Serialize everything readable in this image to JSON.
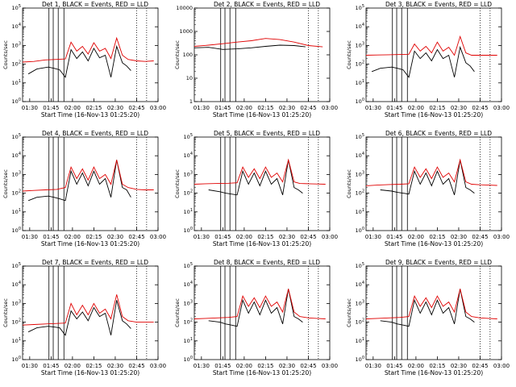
{
  "figure": {
    "xlabel": "Start Time (16-Nov-13 01:25:20)",
    "ylabel": "Counts/sec",
    "x_tick_labels": [
      "01:30",
      "01:45",
      "02:00",
      "02:15",
      "02:30",
      "02:45",
      "03:00"
    ],
    "colors": {
      "events": "#000000",
      "lld": "#e00000"
    }
  },
  "chart_data": [
    {
      "type": "line",
      "title": "Det 1, BLACK = Events, RED = LLD",
      "xlabel": "Start Time (16-Nov-13 01:25:20)",
      "ylabel": "Counts/sec",
      "yscale": "log",
      "xlim_min": [
        0,
        95
      ],
      "ylim": [
        1,
        100000
      ],
      "y_tick_labels": [
        "10^0",
        "10^1",
        "10^2",
        "10^3",
        "10^4",
        "10^5"
      ],
      "vlines_min": [
        18.5,
        21.5,
        25,
        29
      ],
      "dotted_vlines_min": [
        80,
        87
      ],
      "series": [
        {
          "name": "Events",
          "x_min": [
            4,
            10,
            18,
            22,
            26,
            30,
            34,
            38,
            42,
            46,
            50,
            54,
            58,
            62,
            66,
            70,
            73,
            76
          ],
          "values": [
            30,
            55,
            70,
            60,
            50,
            20,
            600,
            200,
            450,
            150,
            700,
            220,
            300,
            20,
            900,
            120,
            80,
            45
          ]
        },
        {
          "name": "LLD",
          "x_min": [
            0,
            8,
            16,
            24,
            30,
            34,
            38,
            42,
            46,
            50,
            54,
            58,
            62,
            66,
            70,
            74,
            80,
            86,
            92
          ],
          "values": [
            130,
            140,
            170,
            180,
            190,
            1500,
            500,
            900,
            350,
            1400,
            500,
            700,
            200,
            2500,
            300,
            180,
            150,
            140,
            150
          ]
        }
      ]
    },
    {
      "type": "line",
      "title": "Det 2, BLACK = Events, RED = LLD",
      "xlabel": "Start Time (16-Nov-13 01:25:20)",
      "ylabel": "Counts/sec",
      "yscale": "log",
      "xlim_min": [
        0,
        95
      ],
      "ylim": [
        1,
        10000
      ],
      "y_tick_labels": [
        "1",
        "10",
        "100",
        "1000",
        "10000"
      ],
      "vlines_min": [
        18.5,
        21.5,
        25,
        29
      ],
      "dotted_vlines_min": [
        80,
        87
      ],
      "series": [
        {
          "name": "Events",
          "x_min": [
            0,
            10,
            20,
            30,
            40,
            50,
            60,
            70,
            78
          ],
          "values": [
            200,
            210,
            170,
            180,
            200,
            230,
            260,
            250,
            220
          ]
        },
        {
          "name": "LLD",
          "x_min": [
            0,
            10,
            20,
            30,
            40,
            50,
            60,
            70,
            80,
            90
          ],
          "values": [
            230,
            260,
            300,
            350,
            400,
            500,
            450,
            350,
            250,
            220
          ]
        }
      ]
    },
    {
      "type": "line",
      "title": "Det 3, BLACK = Events, RED = LLD",
      "xlabel": "Start Time (16-Nov-13 01:25:20)",
      "ylabel": "Counts/sec",
      "yscale": "log",
      "xlim_min": [
        0,
        95
      ],
      "ylim": [
        1,
        100000
      ],
      "y_tick_labels": [
        "10^0",
        "10^1",
        "10^2",
        "10^3",
        "10^4",
        "10^5"
      ],
      "vlines_min": [
        18.5,
        21.5,
        25,
        29
      ],
      "dotted_vlines_min": [
        80,
        87
      ],
      "series": [
        {
          "name": "Events",
          "x_min": [
            4,
            10,
            18,
            22,
            26,
            30,
            34,
            38,
            42,
            46,
            50,
            54,
            58,
            62,
            66,
            70,
            73,
            76
          ],
          "values": [
            40,
            60,
            70,
            60,
            50,
            20,
            500,
            200,
            400,
            150,
            600,
            200,
            300,
            20,
            800,
            120,
            80,
            40
          ]
        },
        {
          "name": "LLD",
          "x_min": [
            0,
            8,
            16,
            24,
            30,
            34,
            38,
            42,
            46,
            50,
            54,
            58,
            62,
            66,
            70,
            74,
            80,
            86,
            92
          ],
          "values": [
            300,
            310,
            320,
            330,
            340,
            1200,
            500,
            900,
            400,
            1500,
            500,
            800,
            300,
            3000,
            400,
            300,
            300,
            300,
            300
          ]
        }
      ]
    },
    {
      "type": "line",
      "title": "Det 4, BLACK = Events, RED = LLD",
      "xlabel": "Start Time (16-Nov-13 01:25:20)",
      "ylabel": "Counts/sec",
      "yscale": "log",
      "xlim_min": [
        0,
        95
      ],
      "ylim": [
        1,
        100000
      ],
      "y_tick_labels": [
        "10^0",
        "10^1",
        "10^2",
        "10^3",
        "10^4",
        "10^5"
      ],
      "vlines_min": [
        18.5,
        21.5,
        25,
        29
      ],
      "dotted_vlines_min": [
        80,
        87
      ],
      "series": [
        {
          "name": "Events",
          "x_min": [
            4,
            10,
            18,
            22,
            26,
            30,
            34,
            38,
            42,
            46,
            50,
            54,
            58,
            62,
            66,
            70,
            73,
            76
          ],
          "values": [
            40,
            60,
            70,
            60,
            50,
            40,
            1500,
            300,
            1200,
            250,
            1500,
            300,
            600,
            60,
            6000,
            200,
            150,
            60
          ]
        },
        {
          "name": "LLD",
          "x_min": [
            0,
            8,
            16,
            24,
            30,
            34,
            38,
            42,
            46,
            50,
            54,
            58,
            62,
            66,
            70,
            74,
            80,
            86,
            92
          ],
          "values": [
            130,
            140,
            150,
            160,
            200,
            2500,
            600,
            2000,
            500,
            2500,
            600,
            1000,
            300,
            6000,
            300,
            200,
            160,
            150,
            150
          ]
        }
      ]
    },
    {
      "type": "line",
      "title": "Det 5, BLACK = Events, RED = LLD",
      "xlabel": "Start Time (16-Nov-13 01:25:20)",
      "ylabel": "Counts/sec",
      "yscale": "log",
      "xlim_min": [
        0,
        95
      ],
      "ylim": [
        1,
        100000
      ],
      "y_tick_labels": [
        "10^0",
        "10^1",
        "10^2",
        "10^3",
        "10^4",
        "10^5"
      ],
      "vlines_min": [
        18.5,
        21.5,
        25,
        29
      ],
      "dotted_vlines_min": [
        80,
        87
      ],
      "series": [
        {
          "name": "Events",
          "x_min": [
            10,
            18,
            22,
            26,
            30,
            34,
            38,
            42,
            46,
            50,
            54,
            58,
            62,
            66,
            70,
            73,
            76
          ],
          "values": [
            150,
            120,
            100,
            90,
            80,
            1500,
            300,
            1200,
            250,
            1500,
            300,
            600,
            80,
            6000,
            200,
            150,
            100
          ]
        },
        {
          "name": "LLD",
          "x_min": [
            0,
            8,
            16,
            24,
            30,
            34,
            38,
            42,
            46,
            50,
            54,
            58,
            62,
            66,
            70,
            74,
            80,
            86,
            92
          ],
          "values": [
            300,
            320,
            330,
            340,
            360,
            2500,
            700,
            2000,
            600,
            2500,
            700,
            1200,
            400,
            6000,
            400,
            330,
            320,
            310,
            300
          ]
        }
      ]
    },
    {
      "type": "line",
      "title": "Det 6, BLACK = Events, RED = LLD",
      "xlabel": "Start Time (16-Nov-13 01:25:20)",
      "ylabel": "Counts/sec",
      "yscale": "log",
      "xlim_min": [
        0,
        95
      ],
      "ylim": [
        1,
        100000
      ],
      "y_tick_labels": [
        "10^0",
        "10^1",
        "10^2",
        "10^3",
        "10^4",
        "10^5"
      ],
      "vlines_min": [
        18.5,
        21.5,
        25,
        29
      ],
      "dotted_vlines_min": [
        80,
        87
      ],
      "series": [
        {
          "name": "Events",
          "x_min": [
            10,
            18,
            22,
            26,
            30,
            34,
            38,
            42,
            46,
            50,
            54,
            58,
            62,
            66,
            70,
            73,
            76
          ],
          "values": [
            150,
            130,
            110,
            100,
            90,
            1500,
            300,
            1200,
            250,
            1500,
            300,
            600,
            80,
            6000,
            200,
            150,
            100
          ]
        },
        {
          "name": "LLD",
          "x_min": [
            0,
            8,
            16,
            24,
            30,
            34,
            38,
            42,
            46,
            50,
            54,
            58,
            62,
            66,
            70,
            74,
            80,
            86,
            92
          ],
          "values": [
            250,
            270,
            290,
            300,
            320,
            2500,
            700,
            2000,
            600,
            2500,
            700,
            1200,
            400,
            6000,
            400,
            300,
            280,
            270,
            260
          ]
        }
      ]
    },
    {
      "type": "line",
      "title": "Det 7, BLACK = Events, RED = LLD",
      "xlabel": "Start Time (16-Nov-13 01:25:20)",
      "ylabel": "Counts/sec",
      "yscale": "log",
      "xlim_min": [
        0,
        95
      ],
      "ylim": [
        1,
        100000
      ],
      "y_tick_labels": [
        "10^0",
        "10^1",
        "10^2",
        "10^3",
        "10^4",
        "10^5"
      ],
      "vlines_min": [
        18.5,
        21.5,
        25,
        29
      ],
      "dotted_vlines_min": [
        80,
        87
      ],
      "series": [
        {
          "name": "Events",
          "x_min": [
            4,
            10,
            18,
            22,
            26,
            30,
            34,
            38,
            42,
            46,
            50,
            54,
            58,
            62,
            66,
            70,
            73,
            76
          ],
          "values": [
            30,
            50,
            60,
            55,
            50,
            20,
            400,
            150,
            350,
            120,
            600,
            200,
            300,
            20,
            1500,
            120,
            80,
            45
          ]
        },
        {
          "name": "LLD",
          "x_min": [
            0,
            8,
            16,
            24,
            30,
            34,
            38,
            42,
            46,
            50,
            54,
            58,
            62,
            66,
            70,
            74,
            80,
            86,
            92
          ],
          "values": [
            70,
            75,
            80,
            85,
            90,
            1000,
            250,
            800,
            250,
            1000,
            300,
            500,
            150,
            3000,
            200,
            120,
            100,
            100,
            100
          ]
        }
      ]
    },
    {
      "type": "line",
      "title": "Det 8, BLACK = Events, RED = LLD",
      "xlabel": "Start Time (16-Nov-13 01:25:20)",
      "ylabel": "Counts/sec",
      "yscale": "log",
      "xlim_min": [
        0,
        95
      ],
      "ylim": [
        1,
        100000
      ],
      "y_tick_labels": [
        "10^0",
        "10^1",
        "10^2",
        "10^3",
        "10^4",
        "10^5"
      ],
      "vlines_min": [
        18.5,
        21.5,
        25,
        29
      ],
      "dotted_vlines_min": [
        80,
        87
      ],
      "series": [
        {
          "name": "Events",
          "x_min": [
            10,
            18,
            22,
            26,
            30,
            34,
            38,
            42,
            46,
            50,
            54,
            58,
            62,
            66,
            70,
            73,
            76
          ],
          "values": [
            120,
            100,
            80,
            70,
            60,
            1500,
            300,
            1200,
            250,
            1500,
            300,
            600,
            80,
            6000,
            200,
            150,
            100
          ]
        },
        {
          "name": "LLD",
          "x_min": [
            0,
            8,
            16,
            24,
            30,
            34,
            38,
            42,
            46,
            50,
            54,
            58,
            62,
            66,
            70,
            74,
            80,
            86,
            92
          ],
          "values": [
            150,
            160,
            170,
            180,
            200,
            2500,
            700,
            2000,
            600,
            2500,
            700,
            1200,
            350,
            6000,
            350,
            200,
            170,
            160,
            150
          ]
        }
      ]
    },
    {
      "type": "line",
      "title": "Det 9, BLACK = Events, RED = LLD",
      "xlabel": "Start Time (16-Nov-13 01:25:20)",
      "ylabel": "Counts/sec",
      "yscale": "log",
      "xlim_min": [
        0,
        95
      ],
      "ylim": [
        1,
        100000
      ],
      "y_tick_labels": [
        "10^0",
        "10^1",
        "10^2",
        "10^3",
        "10^4",
        "10^5"
      ],
      "vlines_min": [
        18.5,
        21.5,
        25,
        29
      ],
      "dotted_vlines_min": [
        80,
        87
      ],
      "series": [
        {
          "name": "Events",
          "x_min": [
            10,
            18,
            22,
            26,
            30,
            34,
            38,
            42,
            46,
            50,
            54,
            58,
            62,
            66,
            70,
            73,
            76
          ],
          "values": [
            120,
            100,
            80,
            70,
            60,
            1500,
            300,
            1200,
            250,
            1500,
            300,
            600,
            80,
            6000,
            200,
            150,
            100
          ]
        },
        {
          "name": "LLD",
          "x_min": [
            0,
            8,
            16,
            24,
            30,
            34,
            38,
            42,
            46,
            50,
            54,
            58,
            62,
            66,
            70,
            74,
            80,
            86,
            92
          ],
          "values": [
            150,
            160,
            170,
            180,
            200,
            2500,
            700,
            2000,
            600,
            2500,
            700,
            1200,
            350,
            6000,
            350,
            200,
            170,
            160,
            150
          ]
        }
      ]
    }
  ]
}
